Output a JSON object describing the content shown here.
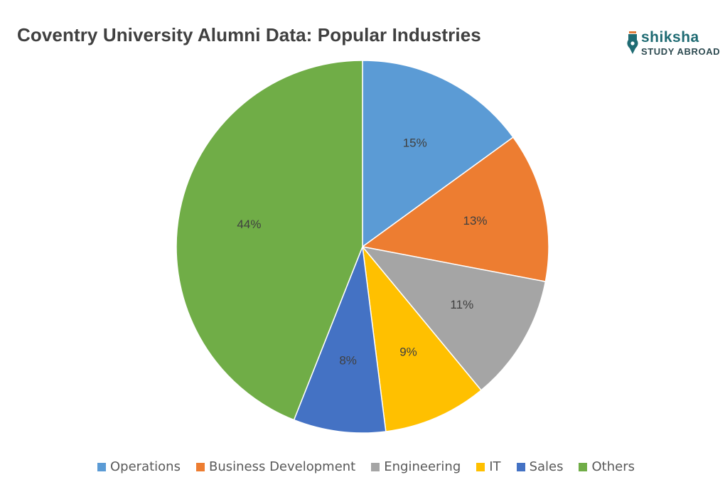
{
  "logo": {
    "line1": "shiksha",
    "line2": "STUDY ABROAD"
  },
  "chart_data": {
    "type": "pie",
    "title": "Coventry University Alumni Data: Popular Industries",
    "categories": [
      "Operations",
      "Business Development",
      "Engineering",
      "IT",
      "Sales",
      "Others"
    ],
    "values": [
      15,
      13,
      11,
      9,
      8,
      44
    ],
    "labels": [
      "15%",
      "13%",
      "11%",
      "9%",
      "8%",
      "44%"
    ],
    "colors": [
      "#5b9bd5",
      "#ed7d31",
      "#a5a5a5",
      "#ffc000",
      "#4472c4",
      "#70ad47"
    ],
    "legend_position": "bottom",
    "start_angle": "12 o'clock",
    "direction": "clockwise"
  }
}
